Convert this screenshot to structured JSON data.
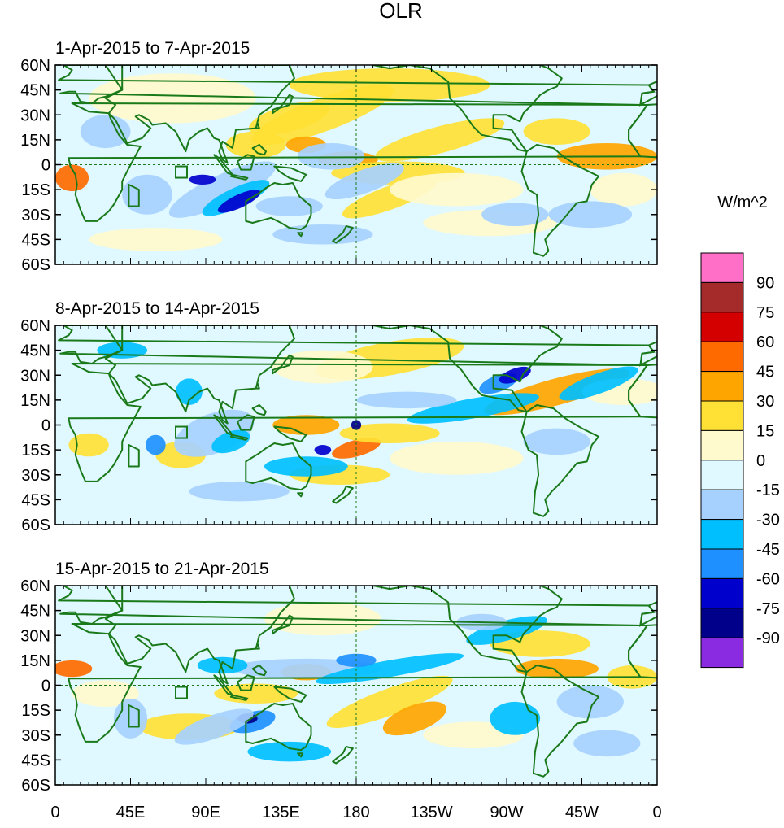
{
  "title": "OLR",
  "panels": [
    {
      "label": "1-Apr-2015 to 7-Apr-2015"
    },
    {
      "label": "8-Apr-2015 to 14-Apr-2015"
    },
    {
      "label": "15-Apr-2015 to 21-Apr-2015"
    }
  ],
  "lat_ticks": [
    "60N",
    "45N",
    "30N",
    "15N",
    "0",
    "15S",
    "30S",
    "45S",
    "60S"
  ],
  "lon_ticks": [
    "0",
    "45E",
    "90E",
    "135E",
    "180",
    "135W",
    "90W",
    "45W",
    "0"
  ],
  "colorbar": {
    "unit": "W/m^2",
    "labels": [
      "90",
      "75",
      "60",
      "45",
      "30",
      "15",
      "0",
      "-15",
      "-30",
      "-45",
      "-60",
      "-75",
      "-90"
    ],
    "colors": [
      "#ff6ec7",
      "#a52a2a",
      "#d40000",
      "#ff6a00",
      "#ffa500",
      "#ffe135",
      "#fffacd",
      "#e0f8ff",
      "#a6d1ff",
      "#00bfff",
      "#1e90ff",
      "#0000cd",
      "#00008b",
      "#8a2be2"
    ]
  },
  "colors": {
    "coast": "#1a7a1a",
    "anomaly_fill_note": "blue = negative, orange = positive"
  }
}
